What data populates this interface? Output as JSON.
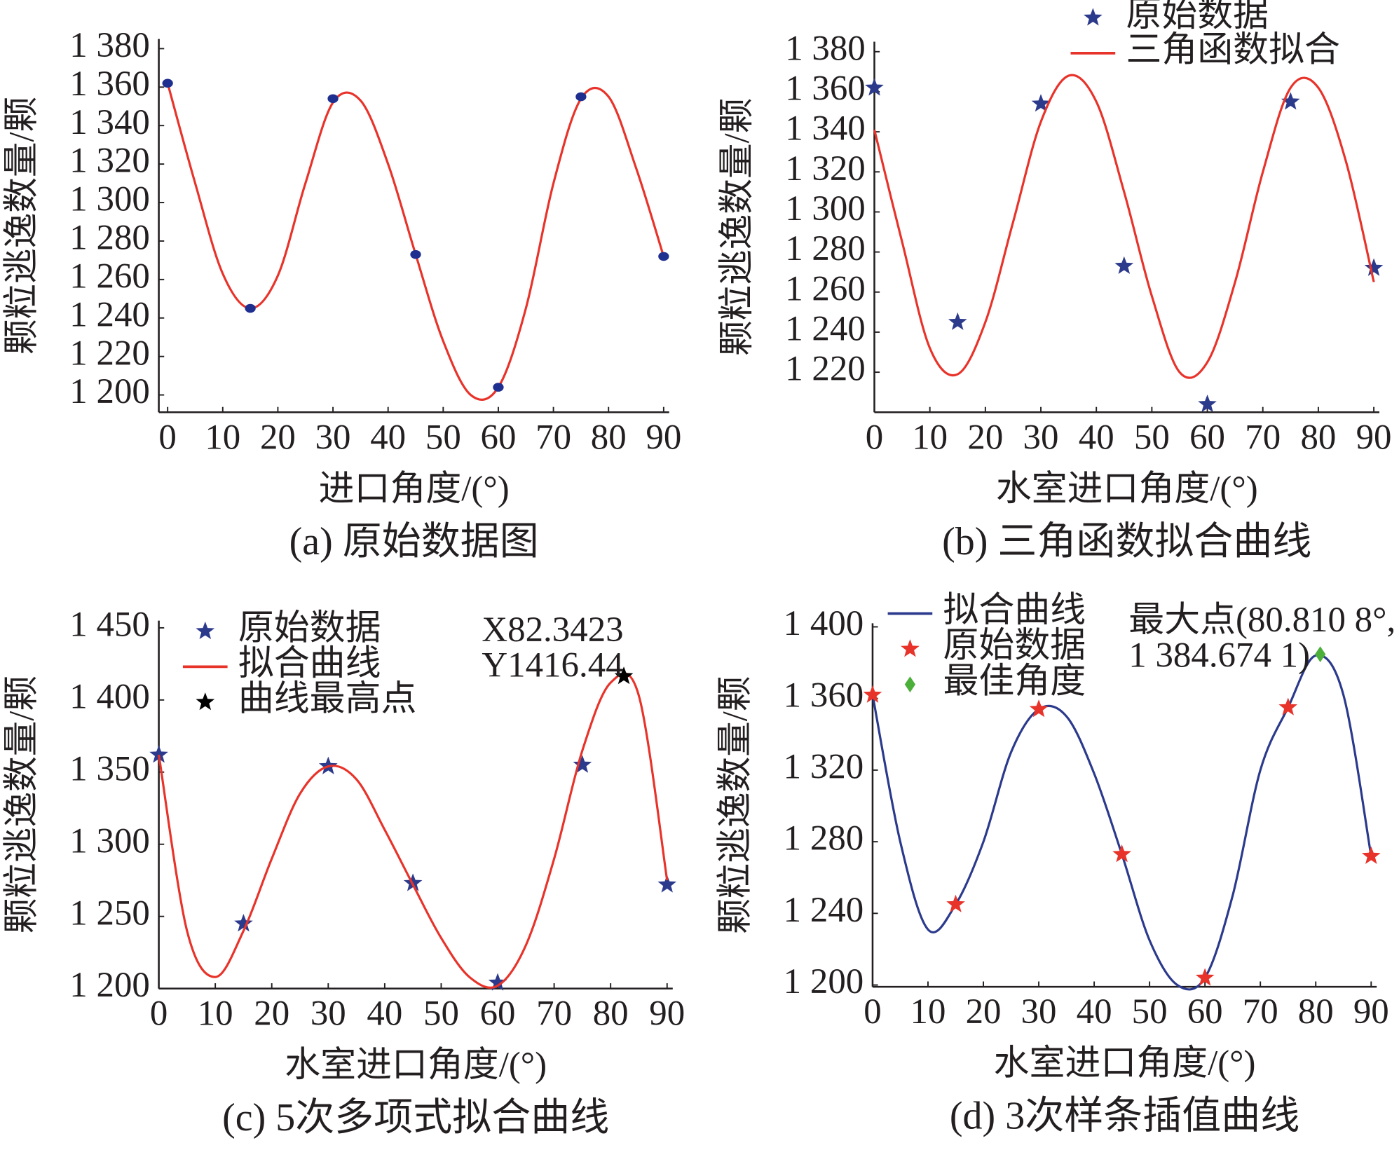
{
  "chart_data": [
    {
      "type": "line",
      "caption": "(a) 原始数据图",
      "xlabel": "进口角度/(°)",
      "ylabel": "颗粒逃逸数量/颗",
      "xlim": [
        -1.6,
        91
      ],
      "ylim": [
        1191,
        1385
      ],
      "xticks": [
        0,
        10,
        20,
        30,
        40,
        50,
        60,
        70,
        80,
        90
      ],
      "yticks": [
        {
          "value": 1200,
          "label": "1 200"
        },
        {
          "value": 1220,
          "label": "1 220"
        },
        {
          "value": 1240,
          "label": "1 240"
        },
        {
          "value": 1260,
          "label": "1 260"
        },
        {
          "value": 1280,
          "label": "1 280"
        },
        {
          "value": 1300,
          "label": "1 300"
        },
        {
          "value": 1320,
          "label": "1 320"
        },
        {
          "value": 1340,
          "label": "1 340"
        },
        {
          "value": 1360,
          "label": "1 360"
        },
        {
          "value": 1380,
          "label": "1 380"
        }
      ],
      "series": [
        {
          "color": "#e8332a",
          "style": "line",
          "x": [
            0,
            5,
            10,
            15,
            20,
            25,
            30,
            35,
            40,
            45,
            50,
            55,
            60,
            65,
            70,
            75,
            80,
            85,
            90
          ],
          "values": [
            1362,
            1310,
            1263,
            1245,
            1262,
            1310,
            1352,
            1353,
            1320,
            1273,
            1228,
            1200,
            1204,
            1245,
            1310,
            1354,
            1355,
            1318,
            1272
          ]
        },
        {
          "color": "#1f2f8f",
          "style": "marker",
          "marker": "circle",
          "x": [
            0,
            15,
            30,
            45,
            60,
            75,
            90
          ],
          "values": [
            1362,
            1245,
            1354,
            1273,
            1204,
            1355,
            1272
          ]
        }
      ]
    },
    {
      "type": "line",
      "caption": "(b) 三角函数拟合曲线",
      "xlabel": "水室进口角度/(°)",
      "ylabel": "颗粒逃逸数量/颗",
      "xlim": [
        0,
        91
      ],
      "ylim": [
        1200,
        1385
      ],
      "legend": "upper right",
      "xticks": [
        0,
        10,
        20,
        30,
        40,
        50,
        60,
        70,
        80,
        90
      ],
      "yticks": [
        {
          "value": 1220,
          "label": "1 220"
        },
        {
          "value": 1240,
          "label": "1 240"
        },
        {
          "value": 1260,
          "label": "1 260"
        },
        {
          "value": 1280,
          "label": "1 280"
        },
        {
          "value": 1300,
          "label": "1 300"
        },
        {
          "value": 1320,
          "label": "1 320"
        },
        {
          "value": 1340,
          "label": "1 340"
        },
        {
          "value": 1360,
          "label": "1 360"
        },
        {
          "value": 1380,
          "label": "1 380"
        }
      ],
      "series": [
        {
          "name": "原始数据",
          "color": "#2c3a8c",
          "style": "marker",
          "marker": "star",
          "x": [
            0,
            15,
            30,
            45,
            60,
            75,
            90
          ],
          "values": [
            1362,
            1245,
            1354,
            1273,
            1204,
            1355,
            1272
          ]
        },
        {
          "name": "三角函数拟合",
          "color": "#e8332a",
          "style": "line",
          "x": [
            0,
            5,
            10,
            15,
            20,
            25,
            30,
            35,
            40,
            45,
            50,
            55,
            60,
            65,
            70,
            75,
            80,
            85,
            90
          ],
          "values": [
            1341,
            1285,
            1232,
            1219,
            1245,
            1295,
            1345,
            1368,
            1355,
            1310,
            1258,
            1220,
            1225,
            1265,
            1320,
            1362,
            1362,
            1325,
            1265
          ]
        }
      ]
    },
    {
      "type": "line",
      "caption": "(c) 5次多项式拟合曲线",
      "xlabel": "水室进口角度/(°)",
      "ylabel": "颗粒逃逸数量/颗",
      "xlim": [
        0,
        91
      ],
      "ylim": [
        1200,
        1455
      ],
      "legend": "upper left",
      "annotations": [
        "X82.3423",
        "Y1416.44"
      ],
      "xticks": [
        0,
        10,
        20,
        30,
        40,
        50,
        60,
        70,
        80,
        90
      ],
      "yticks": [
        {
          "value": 1200,
          "label": "1 200"
        },
        {
          "value": 1250,
          "label": "1 250"
        },
        {
          "value": 1300,
          "label": "1 300"
        },
        {
          "value": 1350,
          "label": "1 350"
        },
        {
          "value": 1400,
          "label": "1 400"
        },
        {
          "value": 1450,
          "label": "1 450"
        }
      ],
      "series": [
        {
          "name": "原始数据",
          "color": "#2c3a8c",
          "style": "marker",
          "marker": "star",
          "x": [
            0,
            15,
            30,
            45,
            60,
            75,
            90
          ],
          "values": [
            1362,
            1245,
            1354,
            1273,
            1204,
            1355,
            1272
          ]
        },
        {
          "name": "拟合曲线",
          "color": "#e8332a",
          "style": "line",
          "x": [
            0,
            5,
            10,
            15,
            20,
            25,
            30,
            35,
            40,
            45,
            50,
            55,
            60,
            65,
            70,
            75,
            80,
            85,
            90
          ],
          "values": [
            1362,
            1240,
            1208,
            1240,
            1290,
            1335,
            1354,
            1345,
            1310,
            1272,
            1235,
            1208,
            1202,
            1230,
            1290,
            1365,
            1412,
            1403,
            1275
          ]
        },
        {
          "name": "曲线最高点",
          "color": "#000000",
          "style": "marker",
          "marker": "star",
          "x": [
            82.3423
          ],
          "values": [
            1416.44
          ]
        }
      ]
    },
    {
      "type": "line",
      "caption": "(d) 3次样条插值曲线",
      "xlabel": "水室进口角度/(°)",
      "ylabel": "颗粒逃逸数量/颗",
      "xlim": [
        0,
        91
      ],
      "ylim": [
        1199,
        1402
      ],
      "legend": "upper left",
      "annotations": [
        "最大点(80.810 8°,",
        "1 384.674 1)"
      ],
      "xticks": [
        0,
        10,
        20,
        30,
        40,
        50,
        60,
        70,
        80,
        90
      ],
      "yticks": [
        {
          "value": 1200,
          "label": "1 200"
        },
        {
          "value": 1240,
          "label": "1 240"
        },
        {
          "value": 1280,
          "label": "1 280"
        },
        {
          "value": 1320,
          "label": "1 320"
        },
        {
          "value": 1360,
          "label": "1 360"
        },
        {
          "value": 1400,
          "label": "1 400"
        }
      ],
      "series": [
        {
          "name": "拟合曲线",
          "color": "#2b3a8c",
          "style": "line",
          "x": [
            0,
            5,
            10,
            15,
            20,
            25,
            30,
            35,
            40,
            45,
            50,
            55,
            60,
            65,
            70,
            75,
            80,
            85,
            90
          ],
          "values": [
            1362,
            1280,
            1231,
            1245,
            1280,
            1330,
            1354,
            1350,
            1318,
            1273,
            1225,
            1200,
            1204,
            1250,
            1320,
            1355,
            1384,
            1362,
            1272
          ]
        },
        {
          "name": "原始数据",
          "color": "#e8332a",
          "style": "marker",
          "marker": "star",
          "x": [
            0,
            15,
            30,
            45,
            60,
            75,
            90
          ],
          "values": [
            1362,
            1245,
            1354,
            1273,
            1204,
            1355,
            1272
          ]
        },
        {
          "name": "最佳角度",
          "color": "#4caf3a",
          "style": "marker",
          "marker": "diamond",
          "x": [
            80.8108
          ],
          "values": [
            1384.6741
          ]
        }
      ]
    }
  ]
}
